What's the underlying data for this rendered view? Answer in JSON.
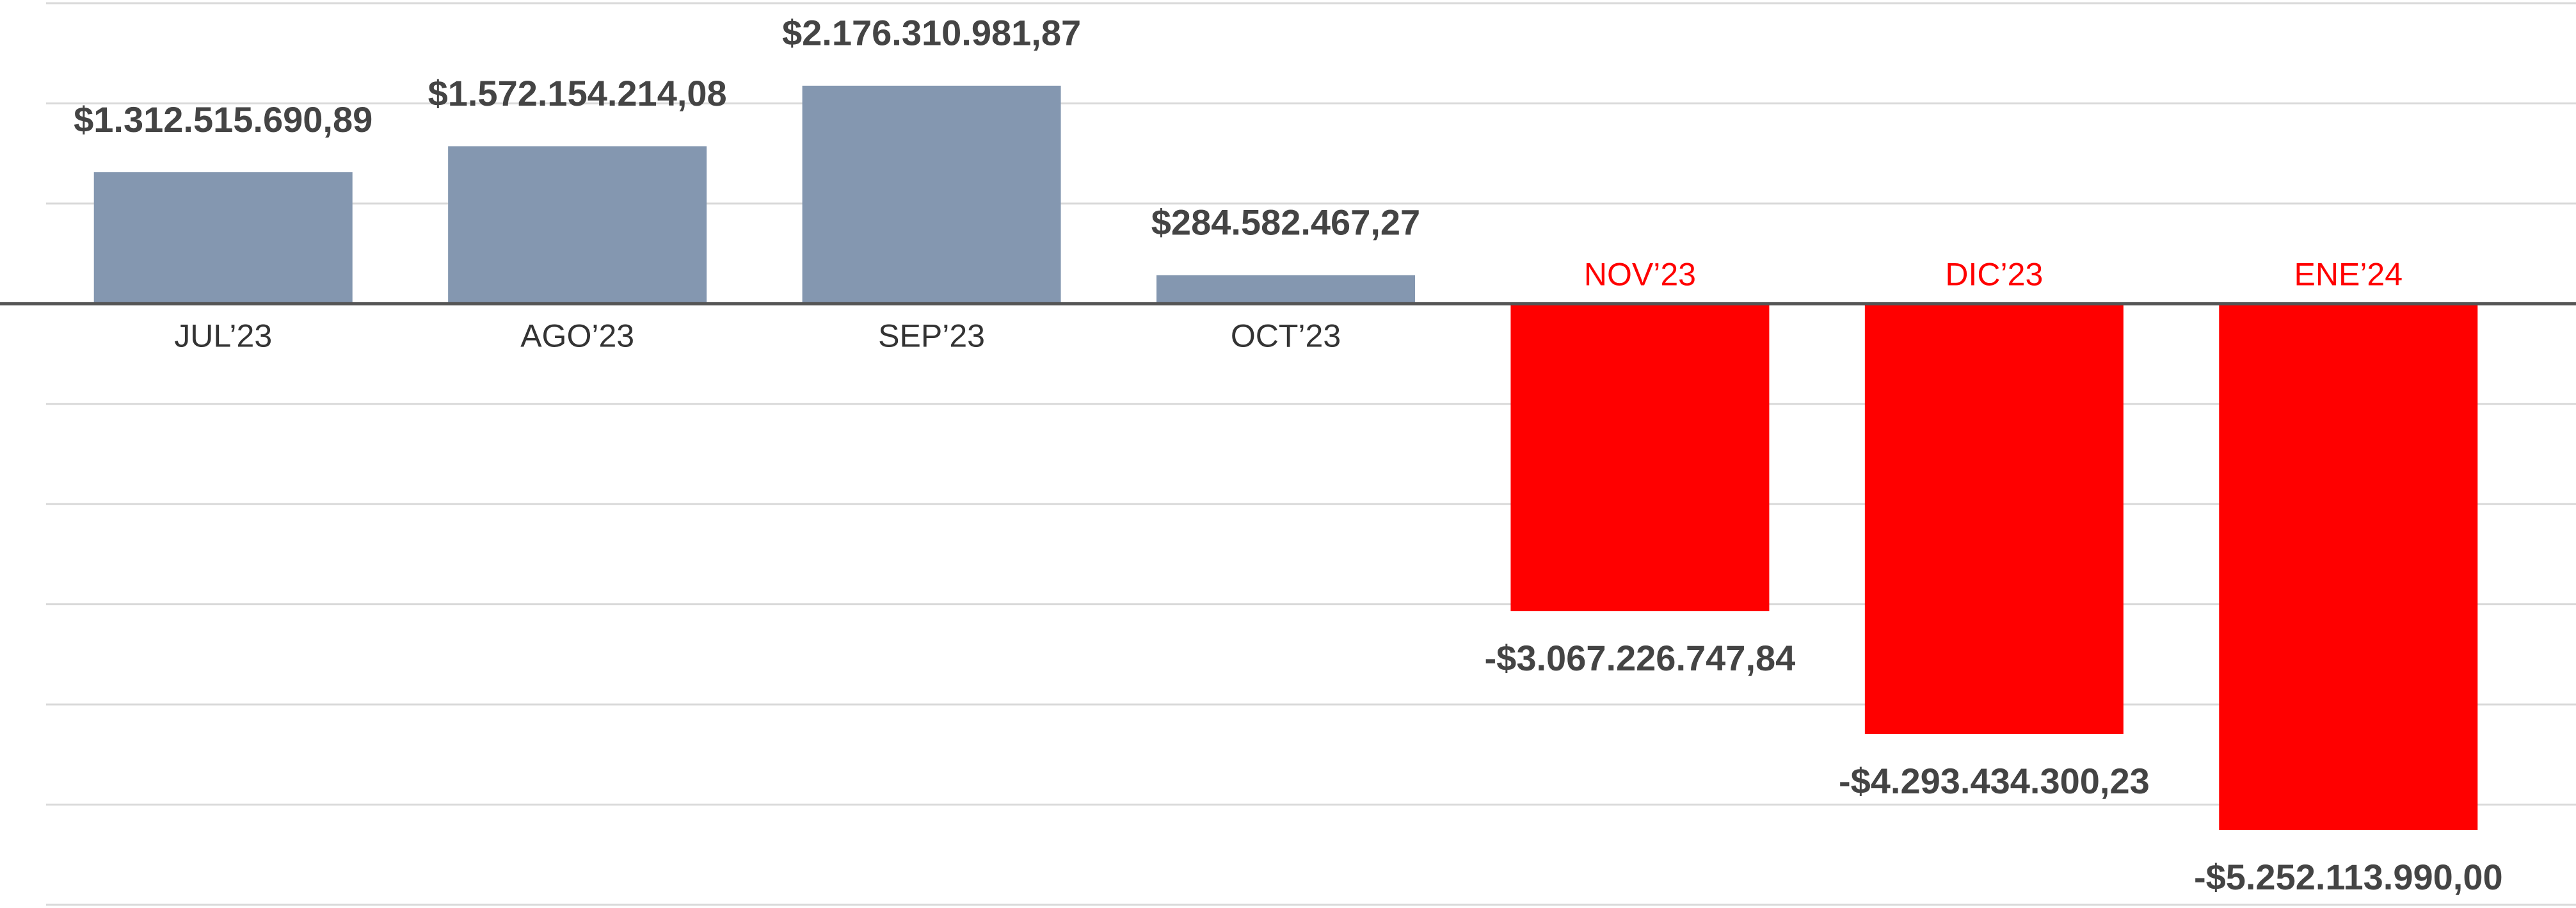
{
  "chart_data": {
    "type": "bar",
    "categories": [
      "JUL’23",
      "AGO’23",
      "SEP’23",
      "OCT’23",
      "NOV’23",
      "DIC’23",
      "ENE’24"
    ],
    "values": [
      1312515690.89,
      1572154214.08,
      2176310981.87,
      284582467.27,
      -3067226747.84,
      -4293434300.23,
      -5252113990.0
    ],
    "value_labels": [
      "$1.312.515.690,89",
      "$1.572.154.214,08",
      "$2.176.310.981,87",
      "$284.582.467,27",
      "-$3.067.226.747,84",
      "-$4.293.434.300,23",
      "-$5.252.113.990,00"
    ],
    "colors": [
      "#8497b0",
      "#8497b0",
      "#8497b0",
      "#8497b0",
      "#ff0000",
      "#ff0000",
      "#ff0000"
    ],
    "ylim": [
      -6000000000,
      3000000000
    ],
    "yticks": [
      -6000000000,
      -5000000000,
      -4000000000,
      -3000000000,
      -2000000000,
      -1000000000,
      0,
      1000000000,
      2000000000,
      3000000000
    ],
    "grid": true
  }
}
